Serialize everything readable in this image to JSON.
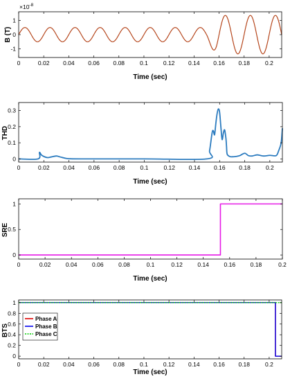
{
  "colors": {
    "b_field": "#b5451b",
    "thd": "#2b7bbf",
    "sre": "#e619e6",
    "phase_a": "#e00000",
    "phase_b": "#0000ee",
    "phase_c": "#00cc00"
  },
  "chart_data": [
    {
      "type": "line",
      "ylabel": "B (T)",
      "xlabel": "Time (sec)",
      "y_exponent": "× 10^-8",
      "y_exponent_base": "×10",
      "y_exponent_power": "-8",
      "xlim": [
        0,
        0.21
      ],
      "ylim": [
        -1.6,
        1.6
      ],
      "xticks": [
        "0",
        "0.02",
        "0.04",
        "0.06",
        "0.08",
        "0.1",
        "0.12",
        "0.14",
        "0.16",
        "0.18",
        "0.2"
      ],
      "yticks": [
        "-1",
        "0",
        "1"
      ],
      "series": [
        {
          "description": "sinusoid ~50 Hz, amplitude 0.5 until t=0.15, then amplitude ~1.4",
          "x": [
            0,
            0.005,
            0.01,
            0.015,
            0.02,
            0.025,
            0.03,
            0.035,
            0.04,
            0.045,
            0.05,
            0.055,
            0.06,
            0.065,
            0.07,
            0.075,
            0.08,
            0.085,
            0.09,
            0.095,
            0.1,
            0.105,
            0.11,
            0.115,
            0.12,
            0.125,
            0.13,
            0.135,
            0.14,
            0.145,
            0.15,
            0.155,
            0.16,
            0.165,
            0.17,
            0.175,
            0.18,
            0.185,
            0.19,
            0.195,
            0.2,
            0.205,
            0.21
          ],
          "y": [
            0,
            0.5,
            0,
            -0.5,
            0,
            0.5,
            0,
            -0.5,
            0,
            0.5,
            0,
            -0.5,
            0,
            0.5,
            0,
            -0.5,
            0,
            0.5,
            0,
            -0.5,
            0,
            0.5,
            0,
            -0.5,
            0,
            0.5,
            0,
            -0.5,
            0,
            0.5,
            0,
            -0.8,
            1.35,
            -1.2,
            0,
            1.3,
            0,
            -1.3,
            0,
            1.35,
            0,
            -1.3,
            0
          ]
        }
      ]
    },
    {
      "type": "line",
      "ylabel": "THD",
      "xlabel": "Time (sec)",
      "xlim": [
        0,
        0.21
      ],
      "ylim": [
        -0.02,
        0.35
      ],
      "xticks": [
        "0",
        "0.02",
        "0.04",
        "0.06",
        "0.08",
        "0.1",
        "0.12",
        "0.14",
        "0.16",
        "0.18",
        "0.2"
      ],
      "yticks": [
        "0",
        "0.1",
        "0.2",
        "0.3"
      ],
      "series": [
        {
          "x": [
            0,
            0.0155,
            0.0165,
            0.018,
            0.02,
            0.023,
            0.026,
            0.03,
            0.033,
            0.037,
            0.04,
            0.05,
            0.1,
            0.15,
            0.152,
            0.154,
            0.155,
            0.156,
            0.157,
            0.158,
            0.159,
            0.16,
            0.161,
            0.162,
            0.163,
            0.164,
            0.165,
            0.1655,
            0.166,
            0.168,
            0.17,
            0.173,
            0.176,
            0.18,
            0.183,
            0.186,
            0.19,
            0.195,
            0.2,
            0.205,
            0.207,
            0.209,
            0.21
          ],
          "y": [
            0,
            0,
            0.04,
            0.025,
            0.015,
            0.008,
            0.012,
            0.018,
            0.012,
            0.004,
            0.001,
            0,
            0,
            0,
            0.05,
            0.16,
            0.175,
            0.15,
            0.22,
            0.28,
            0.31,
            0.29,
            0.2,
            0.12,
            0.16,
            0.18,
            0.13,
            0.08,
            0.03,
            0.015,
            0.013,
            0.015,
            0.02,
            0.035,
            0.02,
            0.018,
            0.025,
            0.018,
            0.022,
            0.02,
            0.05,
            0.1,
            0.19
          ]
        }
      ]
    },
    {
      "type": "line",
      "ylabel": "SRE",
      "xlabel": "Time (sec)",
      "xlim": [
        0,
        0.2
      ],
      "ylim": [
        -0.08,
        1.1
      ],
      "xticks": [
        "0",
        "0.02",
        "0.04",
        "0.06",
        "0.08",
        "0.1",
        "0.12",
        "0.14",
        "0.16",
        "0.18",
        "0.2"
      ],
      "yticks": [
        "0",
        "0.5",
        "1"
      ],
      "series": [
        {
          "x": [
            0,
            0.153,
            0.153,
            0.2
          ],
          "y": [
            0,
            0,
            1,
            1
          ]
        }
      ]
    },
    {
      "type": "line",
      "ylabel": "BTS",
      "xlabel": "Time (sec)",
      "xlim": [
        0,
        0.21
      ],
      "ylim": [
        -0.05,
        1.05
      ],
      "xticks": [
        "0",
        "0.02",
        "0.04",
        "0.06",
        "0.08",
        "0.1",
        "0.12",
        "0.14",
        "0.16",
        "0.18",
        "0.2"
      ],
      "yticks": [
        "0",
        "0.2",
        "0.4",
        "0.6",
        "0.8",
        "1"
      ],
      "legend": "top-left",
      "series": [
        {
          "name": "Phase A",
          "x": [
            0,
            0.205,
            0.205,
            0.21
          ],
          "y": [
            1,
            1,
            0,
            0
          ]
        },
        {
          "name": "Phase B",
          "x": [
            0,
            0.205,
            0.205,
            0.21
          ],
          "y": [
            1,
            1,
            0,
            0
          ]
        },
        {
          "name": "Phase C",
          "x": [
            0,
            0.21
          ],
          "y": [
            1,
            1
          ]
        }
      ]
    }
  ]
}
